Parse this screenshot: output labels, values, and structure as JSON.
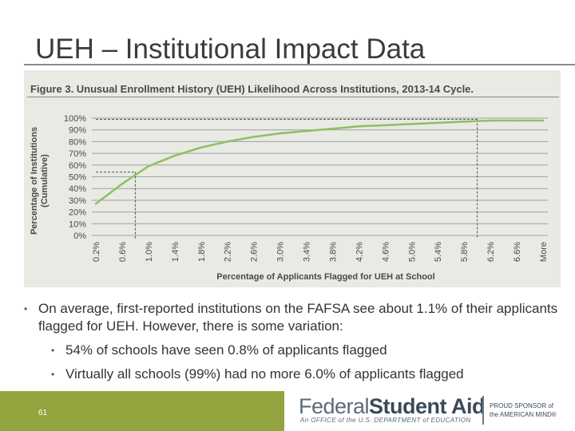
{
  "slide": {
    "title": "UEH – Institutional Impact Data",
    "page_number": "61"
  },
  "chart_data": {
    "type": "line",
    "title": "Figure 3. Unusual Enrollment History (UEH) Likelihood Across Institutions, 2013-14 Cycle.",
    "xlabel": "Percentage of Applicants Flagged for UEH at School",
    "ylabel": "Percentage of Institutions (Cumulative)",
    "categories": [
      "0.2%",
      "0.6%",
      "1.0%",
      "1.4%",
      "1.8%",
      "2.2%",
      "2.6%",
      "3.0%",
      "3.4%",
      "3.8%",
      "4.2%",
      "4.6%",
      "5.0%",
      "5.4%",
      "5.8%",
      "6.2%",
      "6.6%",
      "More"
    ],
    "y_ticks": [
      "0%",
      "10%",
      "20%",
      "30%",
      "40%",
      "50%",
      "60%",
      "70%",
      "80%",
      "90%",
      "100%"
    ],
    "ylim": [
      0,
      100
    ],
    "grid": "horizontal",
    "series": [
      {
        "values": [
          27,
          44,
          59,
          68,
          75,
          80,
          84,
          87,
          89,
          91,
          93,
          94,
          95,
          96,
          97,
          98,
          98,
          98
        ],
        "color": "#8dc063"
      }
    ],
    "reference_lines": [
      {
        "category": "0.8%",
        "value": 54
      },
      {
        "category": "6.0%",
        "value": 99
      }
    ]
  },
  "bullets": {
    "main": "On average, first-reported institutions on the FAFSA see about 1.1% of their applicants flagged for UEH. However, there is some variation:",
    "sub": [
      "54% of schools have seen 0.8% of applicants flagged",
      "Virtually all schools (99%) had no more 6.0% of applicants flagged"
    ]
  },
  "footer": {
    "logo_federal": "Federal",
    "logo_student_aid": "Student Aid",
    "logo_sub": "An OFFICE of the U.S. DEPARTMENT of EDUCATION",
    "sponsor_line1": "PROUD SPONSOR of",
    "sponsor_line2": "the AMERICAN MIND®"
  },
  "colors": {
    "accent_green": "#93a53e",
    "line_green": "#8dc063"
  }
}
